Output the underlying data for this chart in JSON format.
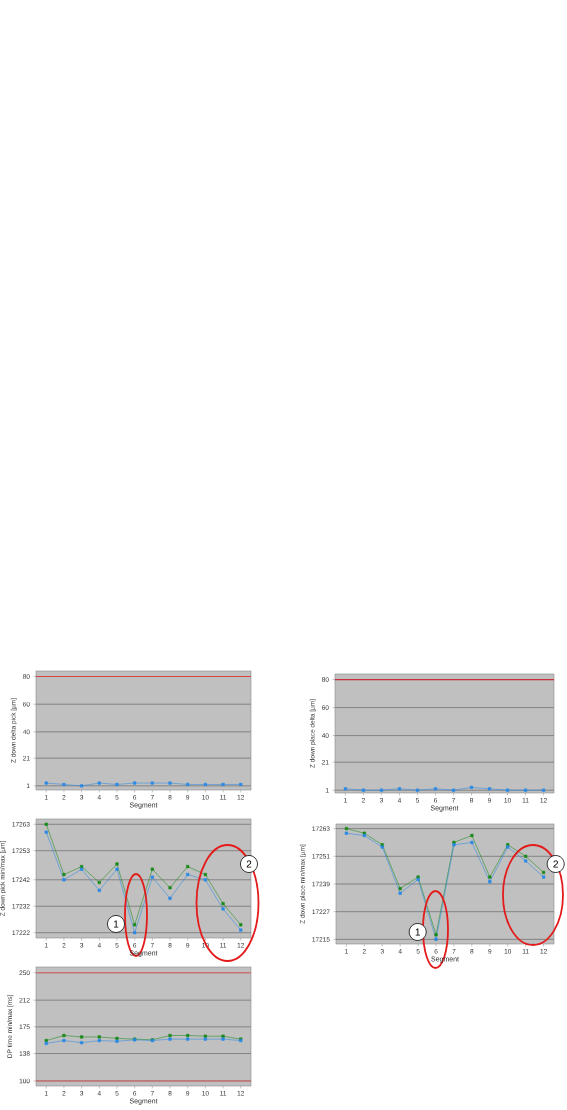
{
  "chart_data": [
    {
      "type": "line",
      "xlabel": "Segment",
      "ylabel": "Z down delta pick [µm]",
      "categories": [
        "1",
        "2",
        "3",
        "4",
        "5",
        "6",
        "7",
        "8",
        "9",
        "10",
        "11",
        "12"
      ],
      "series": [
        {
          "color": "#2b8ae6",
          "values": [
            3,
            2,
            1,
            3,
            2,
            3,
            3,
            3,
            2,
            2,
            2,
            2
          ]
        }
      ],
      "ylim": [
        -2,
        84
      ],
      "yticks": [
        1,
        21,
        40,
        60,
        80
      ],
      "grid": "y",
      "marker": "square",
      "line_style": "solid",
      "ref_lines": [
        {
          "axis": "y",
          "value": 80,
          "color": "#d94040"
        }
      ]
    },
    {
      "type": "line",
      "xlabel": "Segment",
      "ylabel": "Z down place delta [µm]",
      "categories": [
        "1",
        "2",
        "3",
        "4",
        "5",
        "6",
        "7",
        "8",
        "9",
        "10",
        "11",
        "12"
      ],
      "series": [
        {
          "color": "#2b8ae6",
          "values": [
            2,
            1,
            1,
            2,
            1,
            2,
            1,
            3,
            2,
            1,
            1,
            1
          ]
        }
      ],
      "ylim": [
        -1,
        84
      ],
      "yticks": [
        1,
        21,
        40,
        60,
        80
      ],
      "grid": "y",
      "marker": "square",
      "line_style": "solid",
      "ref_lines": [
        {
          "axis": "y",
          "value": 80,
          "color": "#c8303a"
        }
      ]
    },
    {
      "type": "line",
      "xlabel": "Segment",
      "ylabel": "Z down pick min/max [µm]",
      "categories": [
        "1",
        "2",
        "3",
        "4",
        "5",
        "6",
        "7",
        "8",
        "9",
        "10",
        "11",
        "12"
      ],
      "series": [
        {
          "color": "#1a8a1a",
          "values": [
            17263,
            17244,
            17247,
            17241,
            17248,
            17225,
            17246,
            17239,
            17247,
            17244,
            17233,
            17225
          ]
        },
        {
          "color": "#2b8ae6",
          "values": [
            17260,
            17242,
            17246,
            17238,
            17246,
            17222,
            17243,
            17235,
            17244,
            17242,
            17231,
            17223
          ]
        }
      ],
      "ylim": [
        17220,
        17265
      ],
      "yticks": [
        17222,
        17232,
        17242,
        17253,
        17263
      ],
      "grid": "y",
      "marker": "square",
      "line_style": "solid",
      "annotations": [
        "1",
        "2"
      ]
    },
    {
      "type": "line",
      "xlabel": "Segment",
      "ylabel": "Z down place min/max [µm]",
      "categories": [
        "1",
        "2",
        "3",
        "4",
        "5",
        "6",
        "7",
        "8",
        "9",
        "10",
        "11",
        "12"
      ],
      "series": [
        {
          "color": "#1a8a1a",
          "values": [
            17263,
            17261,
            17256,
            17237,
            17242,
            17217,
            17257,
            17260,
            17242,
            17256,
            17251,
            17244
          ]
        },
        {
          "color": "#2b8ae6",
          "values": [
            17261,
            17260,
            17255,
            17235,
            17241,
            17215,
            17256,
            17257,
            17240,
            17255,
            17249,
            17242
          ]
        }
      ],
      "ylim": [
        17213,
        17265
      ],
      "yticks": [
        17215,
        17227,
        17239,
        17251,
        17263
      ],
      "grid": "y",
      "marker": "square",
      "line_style": "solid",
      "annotations": [
        "1",
        "2"
      ]
    },
    {
      "type": "line",
      "xlabel": "Segment",
      "ylabel": "DP time min/max [ms]",
      "categories": [
        "1",
        "2",
        "3",
        "4",
        "5",
        "6",
        "7",
        "8",
        "9",
        "10",
        "11",
        "12"
      ],
      "series": [
        {
          "color": "#1a8a1a",
          "values": [
            156,
            163,
            161,
            161,
            159,
            158,
            157,
            163,
            163,
            162,
            162,
            158
          ]
        },
        {
          "color": "#2b8ae6",
          "values": [
            152,
            156,
            153,
            156,
            155,
            157,
            156,
            158,
            158,
            158,
            158,
            156
          ]
        }
      ],
      "ylim": [
        93,
        258
      ],
      "yticks": [
        100,
        138,
        175,
        212,
        250
      ],
      "grid": "y",
      "marker": "square",
      "line_style": "solid",
      "ref_lines": [
        {
          "axis": "y",
          "value": 250,
          "color": "#e06666"
        },
        {
          "axis": "y",
          "value": 100,
          "color": "#dd5a5a"
        }
      ]
    }
  ]
}
